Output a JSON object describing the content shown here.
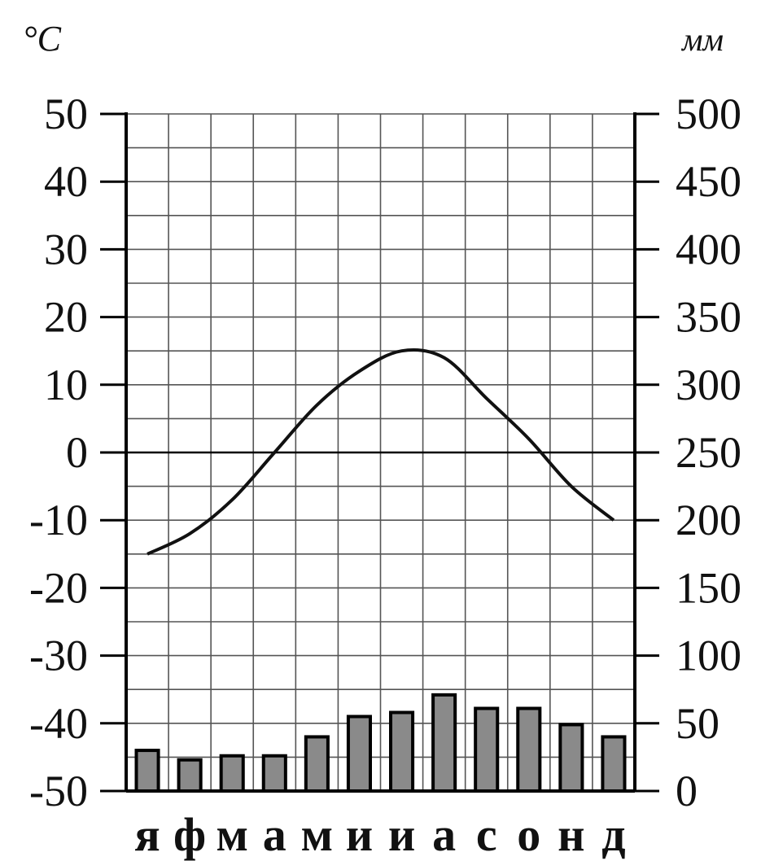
{
  "chart_data": {
    "type": "line+bar",
    "title": "",
    "left_axis": {
      "unit": "°C",
      "ylim": [
        -50,
        50
      ],
      "ticks": [
        "50",
        "40",
        "30",
        "20",
        "10",
        "0",
        "-10",
        "-20",
        "-30",
        "-40",
        "-50"
      ]
    },
    "right_axis": {
      "unit": "мм",
      "ylim": [
        0,
        500
      ],
      "ticks": [
        "500",
        "450",
        "400",
        "350",
        "300",
        "250",
        "200",
        "150",
        "100",
        "50",
        "0"
      ]
    },
    "categories": [
      "я",
      "ф",
      "м",
      "а",
      "м",
      "и",
      "и",
      "а",
      "с",
      "о",
      "н",
      "д"
    ],
    "temperature": [
      -15,
      -12,
      -7,
      0,
      7,
      12,
      15,
      14,
      8,
      2,
      -5,
      -10
    ],
    "precipitation": [
      30,
      23,
      26,
      26,
      40,
      55,
      58,
      71,
      61,
      61,
      49,
      40
    ],
    "grid": true,
    "colors": {
      "line": "#111111",
      "bar_fill": "#8a8a8a",
      "bar_stroke": "#000000",
      "grid": "#555555"
    }
  }
}
